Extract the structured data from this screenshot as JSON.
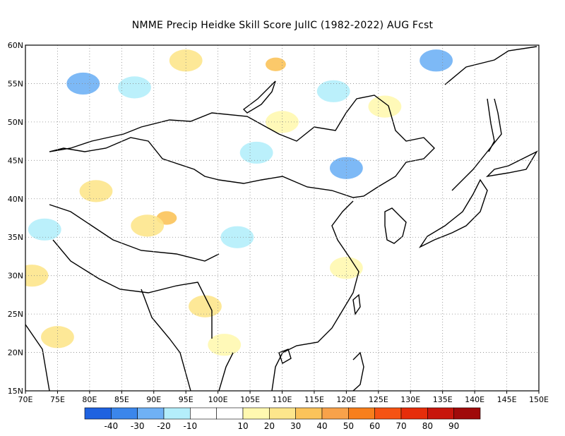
{
  "title": "NMME Precip Heidke Skill Score JulIC (1982-2022) AUG Fcst",
  "axes": {
    "lon_labels": [
      "70E",
      "75E",
      "80E",
      "85E",
      "90E",
      "95E",
      "100E",
      "105E",
      "110E",
      "115E",
      "120E",
      "125E",
      "130E",
      "135E",
      "140E",
      "145E",
      "150E"
    ],
    "lat_labels": [
      "15N",
      "20N",
      "25N",
      "30N",
      "35N",
      "40N",
      "45N",
      "50N",
      "55N",
      "60N"
    ],
    "lon_range": [
      70,
      150
    ],
    "lat_range": [
      15,
      60
    ],
    "grid": "dotted"
  },
  "colorbar": {
    "colors": [
      "#1f62e0",
      "#3b86eb",
      "#6fb1f5",
      "#b4eefb",
      "#ffffff",
      "#ffffff",
      "#fff8b0",
      "#fde68c",
      "#fbc35a",
      "#f8a24a",
      "#f77f1c",
      "#f55313",
      "#e62d0a",
      "#c8160c",
      "#a00a0a"
    ],
    "labels": [
      "-40",
      "-30",
      "-20",
      "-10",
      "10",
      "20",
      "30",
      "40",
      "50",
      "60",
      "70",
      "80",
      "90"
    ]
  },
  "chart_data": {
    "type": "heatmap",
    "title": "NMME Precip Heidke Skill Score JulIC (1982-2022) AUG Fcst",
    "x_range": [
      70,
      150
    ],
    "y_range": [
      15,
      60
    ],
    "color_levels": [
      -40,
      -30,
      -20,
      -10,
      10,
      20,
      30,
      40,
      50,
      60,
      70,
      80,
      90
    ],
    "patches": [
      {
        "lon": 92,
        "lat": 37.5,
        "value": 35
      },
      {
        "lon": 89,
        "lat": 36.5,
        "value": 25
      },
      {
        "lon": 109,
        "lat": 57.5,
        "value": 35
      },
      {
        "lon": 95,
        "lat": 58,
        "value": 25
      },
      {
        "lon": 75,
        "lat": 22,
        "value": 25
      },
      {
        "lon": 71,
        "lat": 30,
        "value": 25
      },
      {
        "lon": 81,
        "lat": 41,
        "value": 25
      },
      {
        "lon": 98,
        "lat": 26,
        "value": 25
      },
      {
        "lon": 110,
        "lat": 50,
        "value": 15
      },
      {
        "lon": 120,
        "lat": 31,
        "value": 15
      },
      {
        "lon": 134,
        "lat": 58,
        "value": -25
      },
      {
        "lon": 79,
        "lat": 55,
        "value": -25
      },
      {
        "lon": 120,
        "lat": 44,
        "value": -25
      },
      {
        "lon": 106,
        "lat": 46,
        "value": -15
      },
      {
        "lon": 103,
        "lat": 35,
        "value": -15
      },
      {
        "lon": 87,
        "lat": 54.5,
        "value": -15
      },
      {
        "lon": 118,
        "lat": 54,
        "value": -15
      },
      {
        "lon": 73,
        "lat": 36,
        "value": -15
      },
      {
        "lon": 126,
        "lat": 52,
        "value": 15
      },
      {
        "lon": 101,
        "lat": 21,
        "value": 15
      }
    ]
  }
}
